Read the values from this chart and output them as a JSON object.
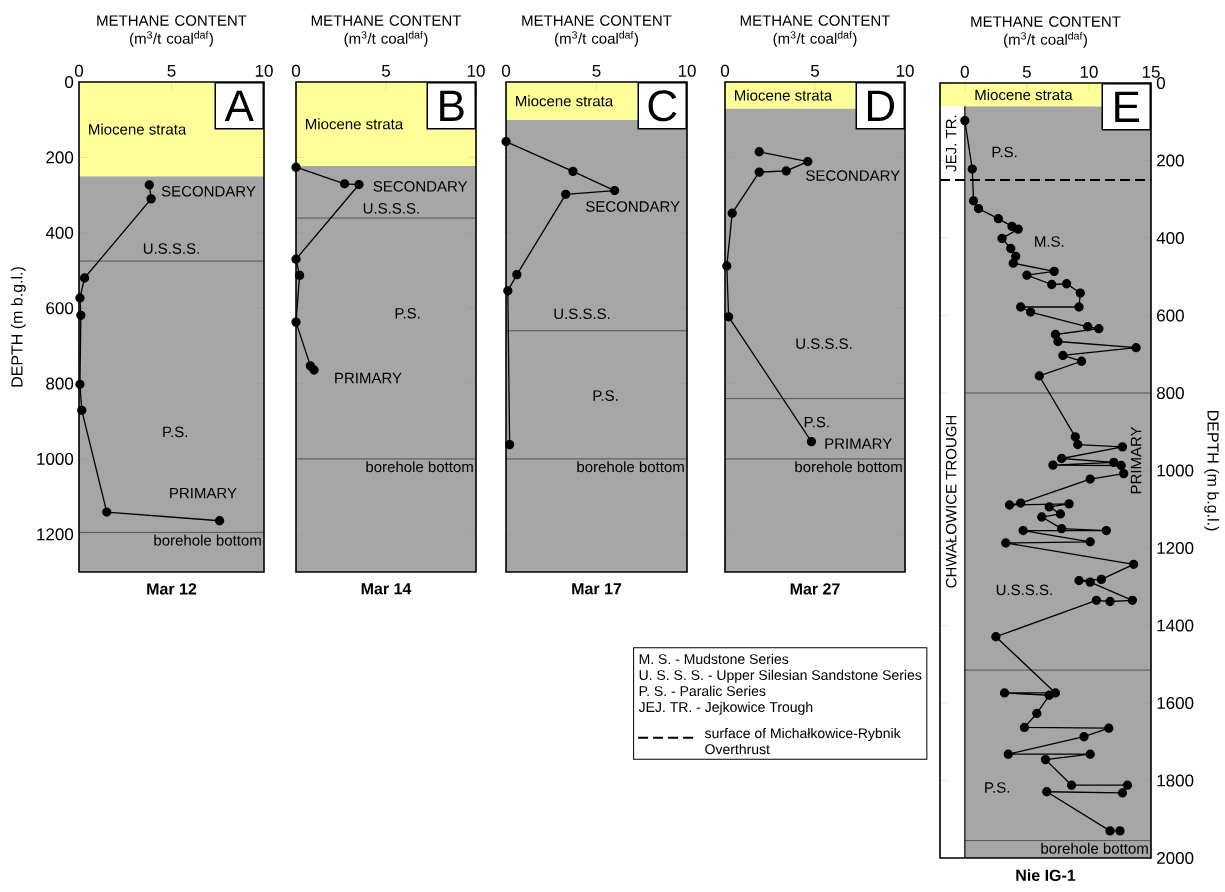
{
  "chart_data": [
    {
      "type": "line",
      "title": "Mar 12",
      "xlabel": "METHANE CONTENT (m$^{3}$/t coal$^{daf}$)",
      "ylabel": "DEPTH (m b.g.l.)",
      "xlim": [
        0,
        10
      ],
      "ylim": [
        1300,
        0
      ],
      "xticks": [
        0,
        5,
        10
      ],
      "yticks": [
        0,
        200,
        400,
        600,
        800,
        1000,
        1200
      ],
      "marker": "circle",
      "line_style": "solid",
      "series": [
        {
          "color": "#000000",
          "x": [
            3.8,
            3.9,
            0.3,
            0.05,
            0.1,
            0.05,
            0.15,
            1.5,
            7.6
          ],
          "values": [
            273,
            310,
            520,
            573,
            619,
            802,
            871,
            1141,
            1164
          ]
        }
      ],
      "bands": [
        {
          "axis": "y",
          "from": 250,
          "to": 1300,
          "color": "#a6a6a6"
        },
        {
          "axis": "y",
          "from": 0,
          "to": 250,
          "color": "#ffff99",
          "label": "Miocene strata"
        }
      ],
      "ref_lines": [
        {
          "axis": "y",
          "value": 475,
          "color": "#000000",
          "line_style": "solid"
        },
        {
          "axis": "y",
          "value": 1195,
          "color": "#000000",
          "line_style": "solid",
          "label": "borehole bottom"
        }
      ],
      "annotations": [
        "A",
        "SECONDARY",
        "U.S.S.S.",
        "P.S.",
        "PRIMARY"
      ]
    },
    {
      "type": "line",
      "title": "Mar 14",
      "xlabel": "METHANE CONTENT (m$^{3}$/t coal$^{daf}$)",
      "xlim": [
        0,
        10
      ],
      "ylim": [
        1300,
        0
      ],
      "xticks": [
        0,
        5,
        10
      ],
      "yticks": [
        0,
        200,
        400,
        600,
        800,
        1000,
        1200
      ],
      "tick_labels": "x",
      "marker": "circle",
      "line_style": "solid",
      "series": [
        {
          "color": "#000000",
          "x": [
            0,
            2.7,
            3.5,
            0,
            0.2,
            0,
            0.8,
            1.0
          ],
          "values": [
            226,
            270,
            272,
            470,
            513,
            637,
            753,
            764
          ]
        }
      ],
      "bands": [
        {
          "axis": "y",
          "from": 222,
          "to": 1300,
          "color": "#a6a6a6"
        },
        {
          "axis": "y",
          "from": 0,
          "to": 222,
          "color": "#ffff99",
          "label": "Miocene strata"
        }
      ],
      "ref_lines": [
        {
          "axis": "y",
          "value": 361,
          "color": "#000000",
          "line_style": "solid"
        },
        {
          "axis": "y",
          "value": 1000,
          "color": "#000000",
          "line_style": "solid",
          "label": "borehole bottom"
        }
      ],
      "annotations": [
        "B",
        "SECONDARY",
        "U.S.S.S.",
        "P.S.",
        "PRIMARY"
      ]
    },
    {
      "type": "line",
      "title": "Mar 17",
      "xlabel": "METHANE CONTENT (m$^{3}$/t coal$^{daf}$)",
      "xlim": [
        0,
        10
      ],
      "ylim": [
        1300,
        0
      ],
      "xticks": [
        0,
        5,
        10
      ],
      "yticks": [
        0,
        200,
        400,
        600,
        800,
        1000,
        1200
      ],
      "tick_labels": "x",
      "marker": "circle",
      "line_style": "solid",
      "series": [
        {
          "color": "#000000",
          "x": [
            0,
            3.7,
            6.0,
            3.3,
            0.6,
            0.1,
            0.2
          ],
          "values": [
            158,
            237,
            288,
            298,
            511,
            554,
            962
          ]
        }
      ],
      "bands": [
        {
          "axis": "y",
          "from": 100,
          "to": 1300,
          "color": "#a6a6a6"
        },
        {
          "axis": "y",
          "from": 0,
          "to": 100,
          "color": "#ffff99",
          "label": "Miocene strata"
        }
      ],
      "ref_lines": [
        {
          "axis": "y",
          "value": 660,
          "color": "#000000",
          "line_style": "solid"
        },
        {
          "axis": "y",
          "value": 1000,
          "color": "#000000",
          "line_style": "solid",
          "label": "borehole bottom"
        }
      ],
      "annotations": [
        "C",
        "SECONDARY",
        "U.S.S.S.",
        "P.S."
      ]
    },
    {
      "type": "line",
      "title": "Mar 27",
      "xlabel": "METHANE CONTENT (m$^{3}$/t coal$^{daf}$)",
      "xlim": [
        0,
        10
      ],
      "ylim": [
        1300,
        0
      ],
      "xticks": [
        0,
        5,
        10
      ],
      "yticks": [
        0,
        200,
        400,
        600,
        800,
        1000,
        1200
      ],
      "tick_labels": "x",
      "marker": "circle",
      "line_style": "solid",
      "series": [
        {
          "color": "#000000",
          "x": [
            1.9,
            4.6,
            3.4,
            1.9,
            0.4,
            0.1,
            0.2,
            4.8
          ],
          "values": [
            185,
            211,
            236,
            239,
            348,
            488,
            623,
            954
          ]
        }
      ],
      "bands": [
        {
          "axis": "y",
          "from": 70,
          "to": 1300,
          "color": "#a6a6a6"
        },
        {
          "axis": "y",
          "from": 0,
          "to": 70,
          "color": "#ffff99",
          "label": "Miocene strata"
        }
      ],
      "ref_lines": [
        {
          "axis": "y",
          "value": 840,
          "color": "#000000",
          "line_style": "solid"
        },
        {
          "axis": "y",
          "value": 1000,
          "color": "#000000",
          "line_style": "solid",
          "label": "borehole bottom"
        }
      ],
      "annotations": [
        "D",
        "SECONDARY",
        "U.S.S.S.",
        "P.S.",
        "PRIMARY"
      ]
    },
    {
      "type": "line",
      "title": "Nie IG-1",
      "xlabel": "METHANE CONTENT (m$^{3}$/t coal$^{daf}$)",
      "ylabel": "DEPTH (m b.g.l.)",
      "xlim": [
        -2,
        15
      ],
      "ylim": [
        2000,
        0
      ],
      "xticks": [
        0,
        5,
        10,
        15
      ],
      "yticks": [
        0,
        200,
        400,
        600,
        800,
        1000,
        1200,
        1400,
        1600,
        1800,
        2000
      ],
      "marker": "circle",
      "line_style": "solid",
      "series": [
        {
          "color": "#000000",
          "x": [
            0.0,
            0.6,
            0.7,
            1.1,
            2.7,
            3.8,
            4.3,
            3.0,
            3.7,
            4.1,
            3.9,
            7.2,
            5.0,
            7.0,
            8.2,
            9.3,
            9.2,
            4.5,
            5.3,
            9.9,
            10.8,
            7.3,
            7.5,
            13.8,
            7.9,
            9.4,
            6.0,
            8.9,
            9.1,
            12.7,
            7.8,
            12.0,
            7.1,
            12.6,
            12.8,
            10.1,
            4.5,
            3.6,
            8.4,
            6.8,
            7.7,
            6.2,
            7.8,
            11.4,
            4.7,
            10.1,
            3.3,
            13.6,
            11.0,
            9.2,
            10.1,
            13.5,
            11.7,
            10.6,
            2.5,
            7.3,
            3.2,
            6.8,
            5.8,
            4.8,
            11.6,
            9.6,
            3.5,
            10.1,
            6.5,
            8.6,
            13.1,
            12.7,
            6.6,
            11.7,
            12.5
          ],
          "values": [
            97,
            222,
            304,
            324,
            350,
            370,
            377,
            401,
            427,
            447,
            465,
            486,
            496,
            520,
            518,
            542,
            578,
            578,
            591,
            629,
            634,
            649,
            667,
            683,
            703,
            718,
            756,
            913,
            933,
            939,
            969,
            979,
            986,
            987,
            1008,
            1022,
            1084,
            1089,
            1086,
            1094,
            1112,
            1120,
            1150,
            1155,
            1155,
            1184,
            1187,
            1242,
            1281,
            1284,
            1288,
            1335,
            1338,
            1335,
            1429,
            1574,
            1574,
            1580,
            1627,
            1663,
            1665,
            1687,
            1732,
            1732,
            1746,
            1812,
            1812,
            1832,
            1829,
            1930,
            1930
          ]
        }
      ],
      "bands": [
        {
          "axis": "y",
          "from": 60,
          "to": 2000,
          "color": "#a6a6a6"
        },
        {
          "axis": "x",
          "from": -2,
          "to": 0,
          "color": "#ffffff"
        },
        {
          "axis": "y",
          "from": 0,
          "to": 60,
          "color": "#ffff99",
          "label": "Miocene strata"
        }
      ],
      "ref_lines": [
        {
          "axis": "y",
          "value": 250,
          "color": "#000000",
          "line_style": "dashed",
          "label": "surface of Michałkowice-Rybnik Overthrust"
        },
        {
          "axis": "y",
          "value": 800,
          "color": "#000000",
          "line_style": "solid"
        },
        {
          "axis": "y",
          "value": 1515,
          "color": "#000000",
          "line_style": "solid"
        },
        {
          "axis": "y",
          "value": 1955,
          "color": "#000000",
          "line_style": "solid",
          "label": "borehole bottom"
        }
      ],
      "annotations": [
        "E",
        "M. S. - Mudstone Series",
        "U. S. S. S. - Upper Silesian Sandstone Series",
        "P. S. - Paralic Series",
        "JEJ. TR. - Jejkowice Trough",
        "JEJ. TR.",
        "CHWAŁOWICE TROUGH",
        "P.S.",
        "M.S.",
        "PRIMARY",
        "U.S.S.S.",
        "P.S."
      ]
    }
  ]
}
